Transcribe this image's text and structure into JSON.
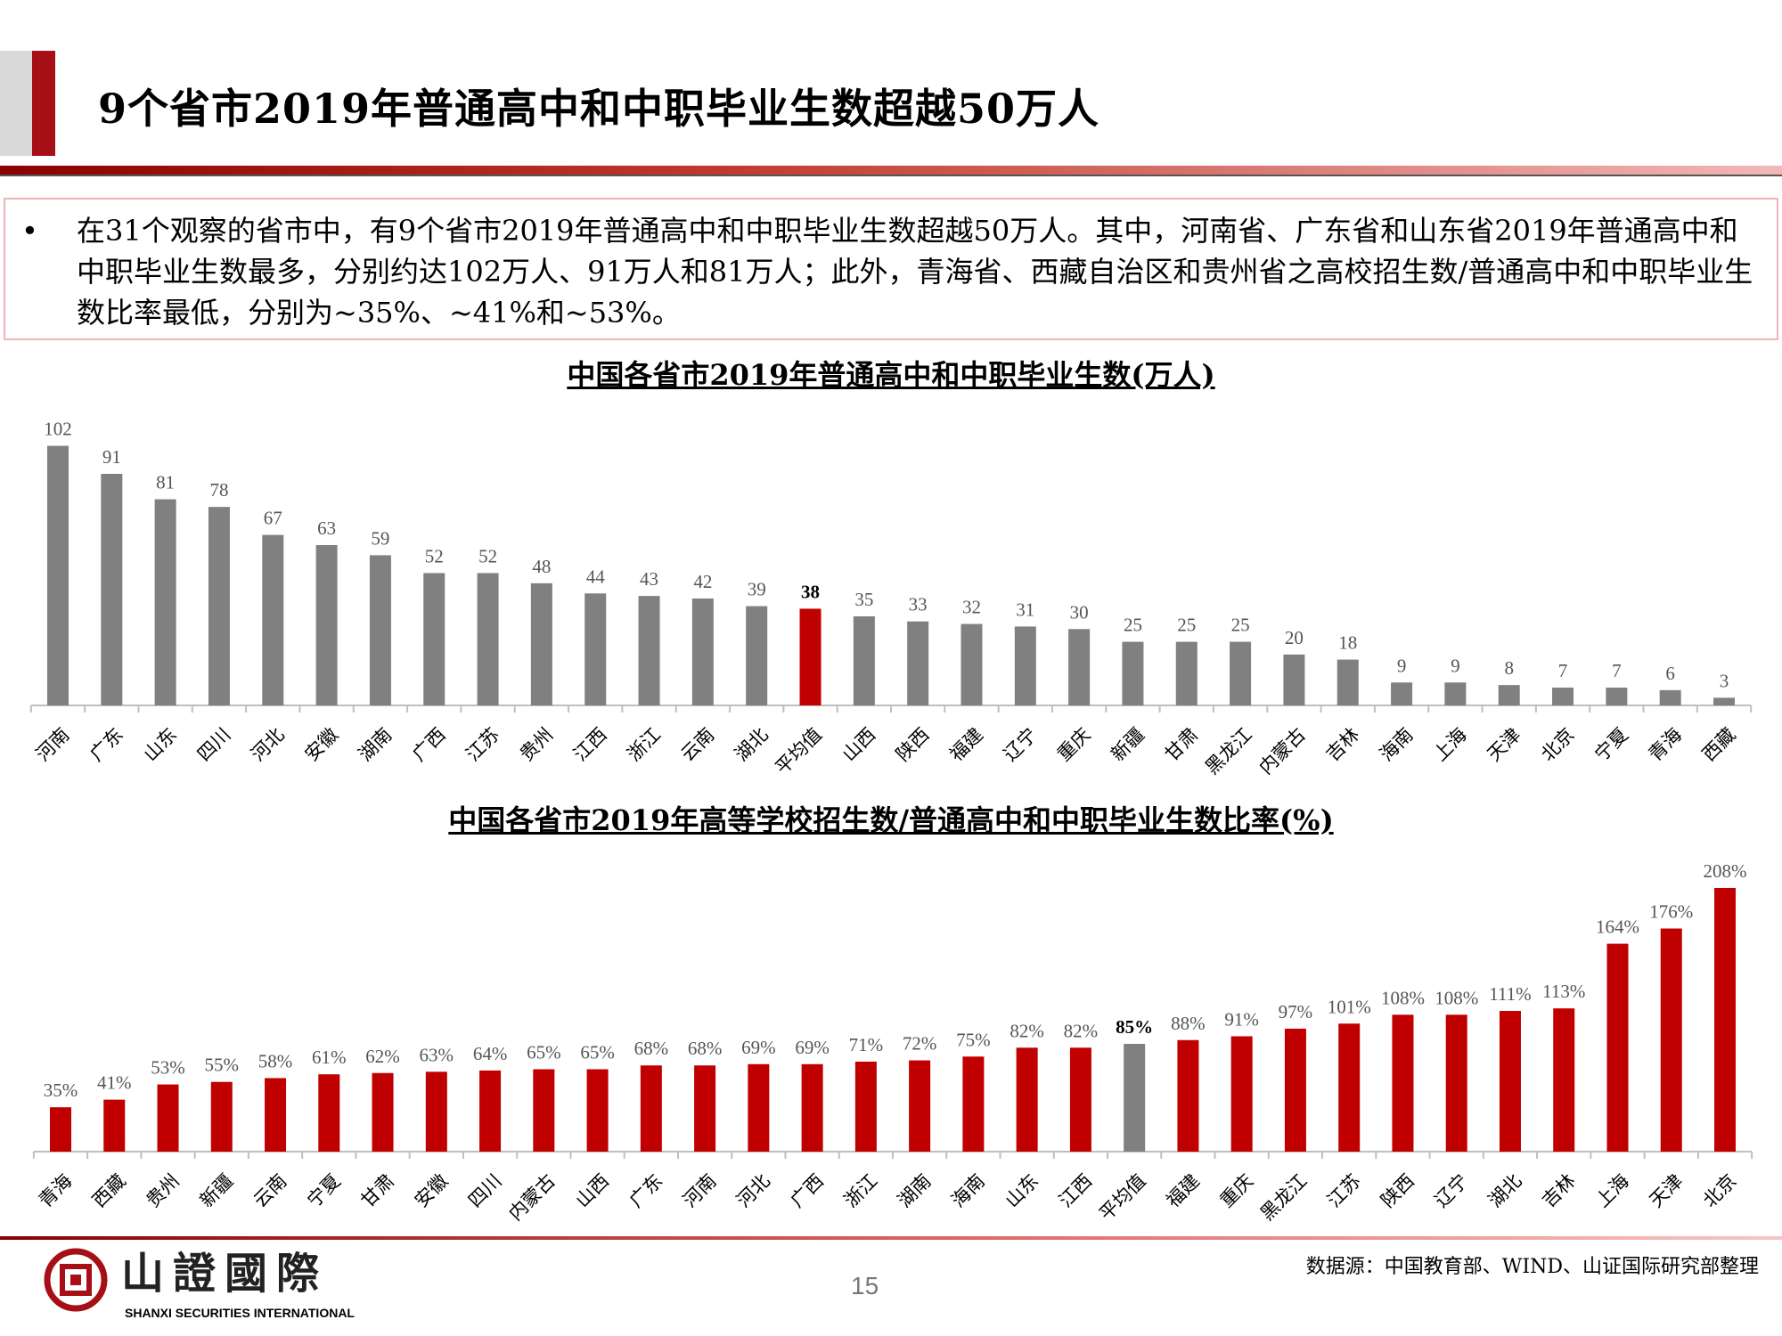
{
  "header": {
    "title": "9个省市2019年普通高中和中职毕业生数超越50万人"
  },
  "summary": {
    "bullet": "•",
    "text": "在31个观察的省市中，有9个省市2019年普通高中和中职毕业生数超越50万人。其中，河南省、广东省和山东省2019年普通高中和中职毕业生数最多，分别约达102万人、91万人和81万人；此外，青海省、西藏自治区和贵州省之高校招生数/普通高中和中职毕业生数比率最低，分别为~35%、~41%和~53%。"
  },
  "chart_data": [
    {
      "type": "bar",
      "title": "中国各省市2019年普通高中和中职毕业生数(万人)",
      "xlabel": "",
      "ylabel": "",
      "ylim": [
        0,
        105
      ],
      "categories": [
        "河南",
        "广东",
        "山东",
        "四川",
        "河北",
        "安徽",
        "湖南",
        "广西",
        "江苏",
        "贵州",
        "江西",
        "浙江",
        "云南",
        "湖北",
        "平均值",
        "山西",
        "陕西",
        "福建",
        "辽宁",
        "重庆",
        "新疆",
        "甘肃",
        "黑龙江",
        "内蒙古",
        "吉林",
        "海南",
        "上海",
        "天津",
        "北京",
        "宁夏",
        "青海",
        "西藏"
      ],
      "values": [
        102,
        91,
        81,
        78,
        67,
        63,
        59,
        52,
        52,
        48,
        44,
        43,
        42,
        39,
        38,
        35,
        33,
        32,
        31,
        30,
        25,
        25,
        25,
        20,
        18,
        9,
        9,
        8,
        7,
        7,
        6,
        3
      ],
      "value_suffix": "",
      "highlight": "平均值",
      "colors": {
        "bar": "#808080",
        "highlight": "#c00000"
      }
    },
    {
      "type": "bar",
      "title": "中国各省市2019年高等学校招生数/普通高中和中职毕业生数比率(%)",
      "xlabel": "",
      "ylabel": "",
      "ylim": [
        0,
        215
      ],
      "categories": [
        "青海",
        "西藏",
        "贵州",
        "新疆",
        "云南",
        "宁夏",
        "甘肃",
        "安徽",
        "四川",
        "内蒙古",
        "山西",
        "广东",
        "河南",
        "河北",
        "广西",
        "浙江",
        "湖南",
        "海南",
        "山东",
        "江西",
        "平均值",
        "福建",
        "重庆",
        "黑龙江",
        "江苏",
        "陕西",
        "辽宁",
        "湖北",
        "吉林",
        "上海",
        "天津",
        "北京"
      ],
      "values": [
        35,
        41,
        53,
        55,
        58,
        61,
        62,
        63,
        64,
        65,
        65,
        68,
        68,
        69,
        69,
        71,
        72,
        75,
        82,
        82,
        85,
        88,
        91,
        97,
        101,
        108,
        108,
        111,
        113,
        164,
        176,
        208
      ],
      "value_suffix": "%",
      "highlight": "平均值",
      "colors": {
        "bar": "#c00000",
        "highlight": "#808080"
      }
    }
  ],
  "footer": {
    "logo_name": "山證國際",
    "logo_en": "SHANXI SECURITIES INTERNATIONAL",
    "page": "15",
    "source": "数据源：中国教育部、WIND、山证国际研究部整理"
  }
}
